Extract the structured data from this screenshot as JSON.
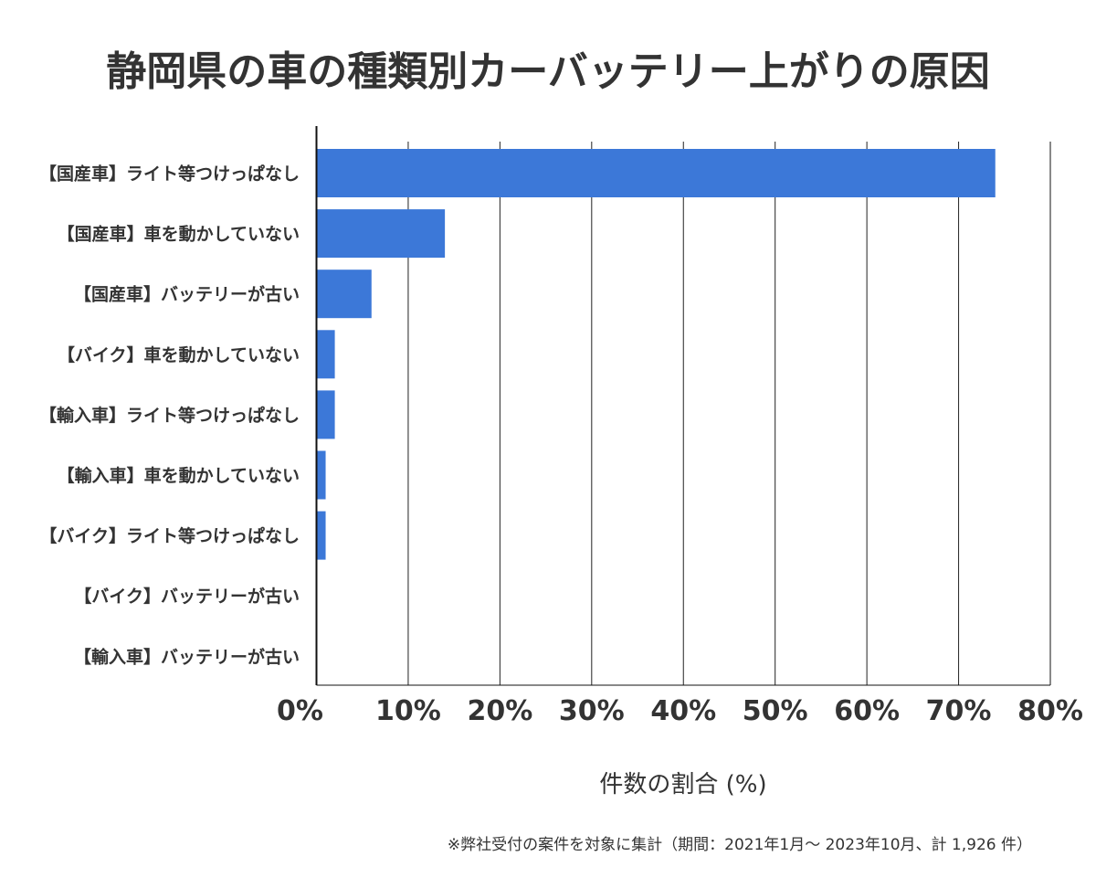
{
  "chart_data": {
    "type": "bar",
    "orientation": "horizontal",
    "title": "静岡県の車の種類別カーバッテリー上がりの原因",
    "xlabel": "件数の割合 (%)",
    "ylabel": "",
    "categories": [
      "【国産車】ライト等つけっぱなし",
      "【国産車】車を動かしていない",
      "【国産車】バッテリーが古い",
      "【バイク】車を動かしていない",
      "【輸入車】ライト等つけっぱなし",
      "【輸入車】車を動かしていない",
      "【バイク】ライト等つけっぱなし",
      "【バイク】バッテリーが古い",
      "【輸入車】バッテリーが古い"
    ],
    "values": [
      74.0,
      14.0,
      6.0,
      2.0,
      2.0,
      1.0,
      1.0,
      0,
      0
    ],
    "xlim": [
      0,
      80
    ],
    "xticks": [
      0,
      10,
      20,
      30,
      40,
      50,
      60,
      70,
      80
    ],
    "xtick_labels": [
      "0%",
      "10%",
      "20%",
      "30%",
      "40%",
      "50%",
      "60%",
      "70%",
      "80%"
    ],
    "grid": true,
    "bar_color": "#3c78d8",
    "footnote": "※弊社受付の案件を対象に集計（期間：2021年1月～ 2023年10月、計 1,926 件）"
  }
}
